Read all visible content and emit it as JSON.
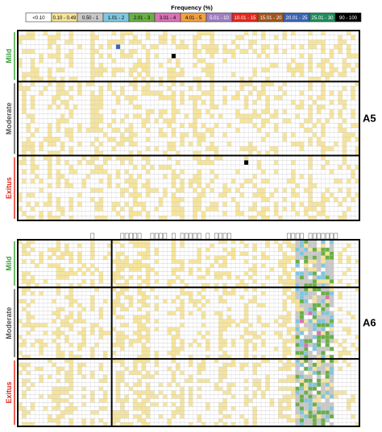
{
  "chart_data": {
    "type": "heatmap",
    "title": "Frequency (%)",
    "legend": {
      "placement": "top",
      "bins": [
        {
          "label": "<0.10",
          "color": "#ffffff"
        },
        {
          "label": "0.10 - 0.49",
          "color": "#f6e49a"
        },
        {
          "label": "0.50 - 1",
          "color": "#c8c8c8"
        },
        {
          "label": "1.01 - 2",
          "color": "#7fc7e0"
        },
        {
          "label": "2.01 - 3",
          "color": "#6aaf45"
        },
        {
          "label": "3.01 - 4",
          "color": "#d873b6"
        },
        {
          "label": "4.01 - 5",
          "color": "#f0a043"
        },
        {
          "label": "5.01 - 10",
          "color": "#a07fc0"
        },
        {
          "label": "10.01 - 15",
          "color": "#e0281e"
        },
        {
          "label": "15.01 - 20",
          "color": "#a0561e"
        },
        {
          "label": "20.01 - 25",
          "color": "#3a64b4"
        },
        {
          "label": "25.01 - 30",
          "color": "#1e8c5a"
        },
        {
          "label": "90 - 100",
          "color": "#000000"
        }
      ]
    },
    "panels": [
      {
        "label": "A5",
        "columns": 80,
        "groups": [
          {
            "name": "Mild",
            "color": "#3aa03a",
            "rows": 11
          },
          {
            "name": "Moderate",
            "color": "#555555",
            "rows": 16
          },
          {
            "name": "Exitus",
            "color": "#e0281e",
            "rows": 14
          }
        ],
        "fill_level": 0.3,
        "highlights": [
          {
            "group": 0,
            "row": 3,
            "col": 23,
            "bin": "20.01 - 25"
          },
          {
            "group": 0,
            "row": 5,
            "col": 36,
            "bin": "90 - 100"
          },
          {
            "group": 2,
            "row": 1,
            "col": 53,
            "bin": "90 - 100"
          }
        ]
      },
      {
        "label": "A6",
        "columns": 80,
        "groups": [
          {
            "name": "Mild",
            "color": "#3aa03a",
            "rows": 12
          },
          {
            "name": "Moderate",
            "color": "#555555",
            "rows": 18
          },
          {
            "name": "Exitus",
            "color": "#e0281e",
            "rows": 17
          }
        ],
        "fill_level": 0.3,
        "highlight_band": {
          "col_start": 65,
          "col_end": 73
        },
        "divider_col": 22
      }
    ]
  }
}
